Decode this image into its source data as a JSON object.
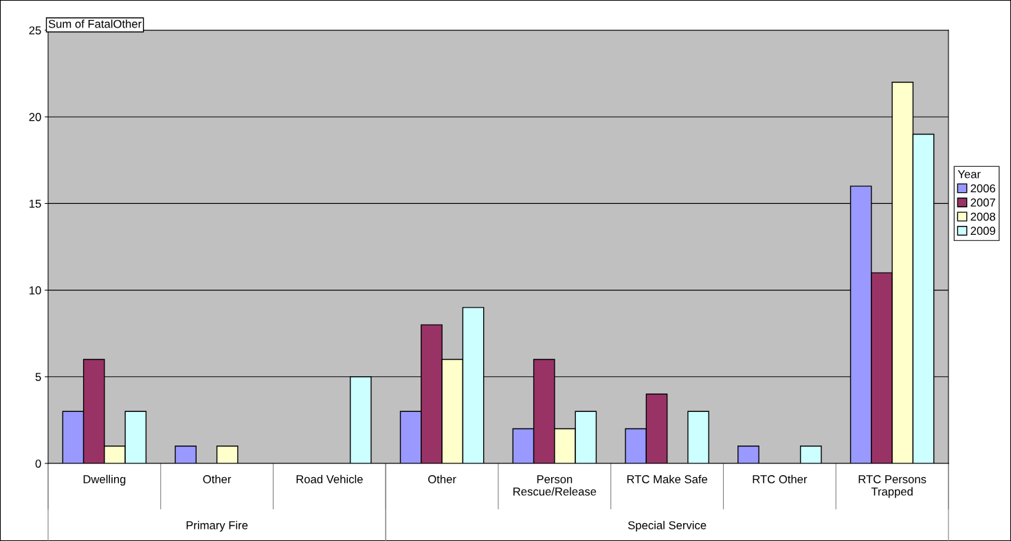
{
  "chart_data": {
    "type": "bar",
    "title": "Sum of FatalOther",
    "legend_title": "Year",
    "legend": "right",
    "categories": [
      "Dwelling",
      "Other",
      "Road Vehicle",
      "Other",
      "Person\nRescue/Release",
      "RTC Make Safe",
      "RTC Other",
      "RTC Persons\nTrapped"
    ],
    "series": [
      {
        "name": "2006",
        "color": "#9999ff",
        "values": [
          3,
          1,
          null,
          3,
          2,
          2,
          1,
          16
        ]
      },
      {
        "name": "2007",
        "color": "#993366",
        "values": [
          6,
          null,
          null,
          8,
          6,
          4,
          null,
          11
        ]
      },
      {
        "name": "2008",
        "color": "#ffffcc",
        "values": [
          1,
          1,
          null,
          6,
          2,
          null,
          null,
          22
        ]
      },
      {
        "name": "2009",
        "color": "#ccffff",
        "values": [
          3,
          null,
          5,
          9,
          3,
          3,
          1,
          19
        ]
      }
    ],
    "ylim": [
      0,
      25
    ],
    "yticks": [
      0,
      5,
      10,
      15,
      20,
      25
    ],
    "grid": "y",
    "annotations": [
      "Primary Fire",
      "Special Service"
    ]
  }
}
